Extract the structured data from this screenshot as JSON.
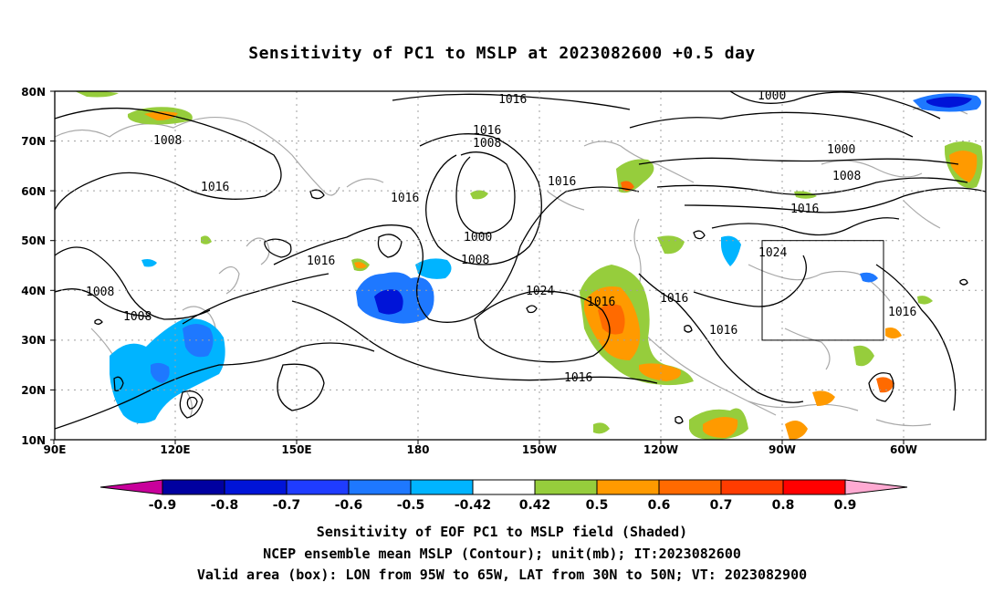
{
  "title": "Sensitivity of PC1 to MSLP at 2023082600 +0.5 day",
  "axes": {
    "x_ticks": [
      "90E",
      "120E",
      "150E",
      "180",
      "150W",
      "120W",
      "90W",
      "60W"
    ],
    "y_ticks": [
      "80N",
      "70N",
      "60N",
      "50N",
      "40N",
      "30N",
      "20N",
      "10N"
    ]
  },
  "contour_labels": [
    "1016",
    "1000",
    "1016",
    "1008",
    "1008",
    "1016",
    "1016",
    "1016",
    "1000",
    "1008",
    "1016",
    "1024",
    "1016",
    "1024",
    "1016",
    "1016",
    "1016",
    "1008",
    "1008",
    "1016",
    "1016",
    "1008",
    "1000"
  ],
  "valid_box": {
    "lon": [
      "95W",
      "65W"
    ],
    "lat": [
      "30N",
      "50N"
    ]
  },
  "colorbar": {
    "ticks": [
      "-0.9",
      "-0.8",
      "-0.7",
      "-0.6",
      "-0.5",
      "-0.42",
      "0.42",
      "0.5",
      "0.6",
      "0.7",
      "0.8",
      "0.9"
    ],
    "colors": [
      "#0000a0",
      "#0014d8",
      "#1f3cff",
      "#1e78ff",
      "#00b4ff",
      "#ffffff",
      "#96cd3c",
      "#ff9a00",
      "#ff6a00",
      "#ff3c00",
      "#ff0000"
    ],
    "low_end_color": "#c8009b",
    "high_end_color": "#ffaad2"
  },
  "captions": {
    "line1": "Sensitivity of EOF PC1 to MSLP field (Shaded)",
    "line2": "NCEP ensemble mean MSLP (Contour); unit(mb); IT:2023082600",
    "line3": "Valid area (box): LON from 95W to 65W, LAT from 30N to 50N; VT: 2023082900"
  }
}
